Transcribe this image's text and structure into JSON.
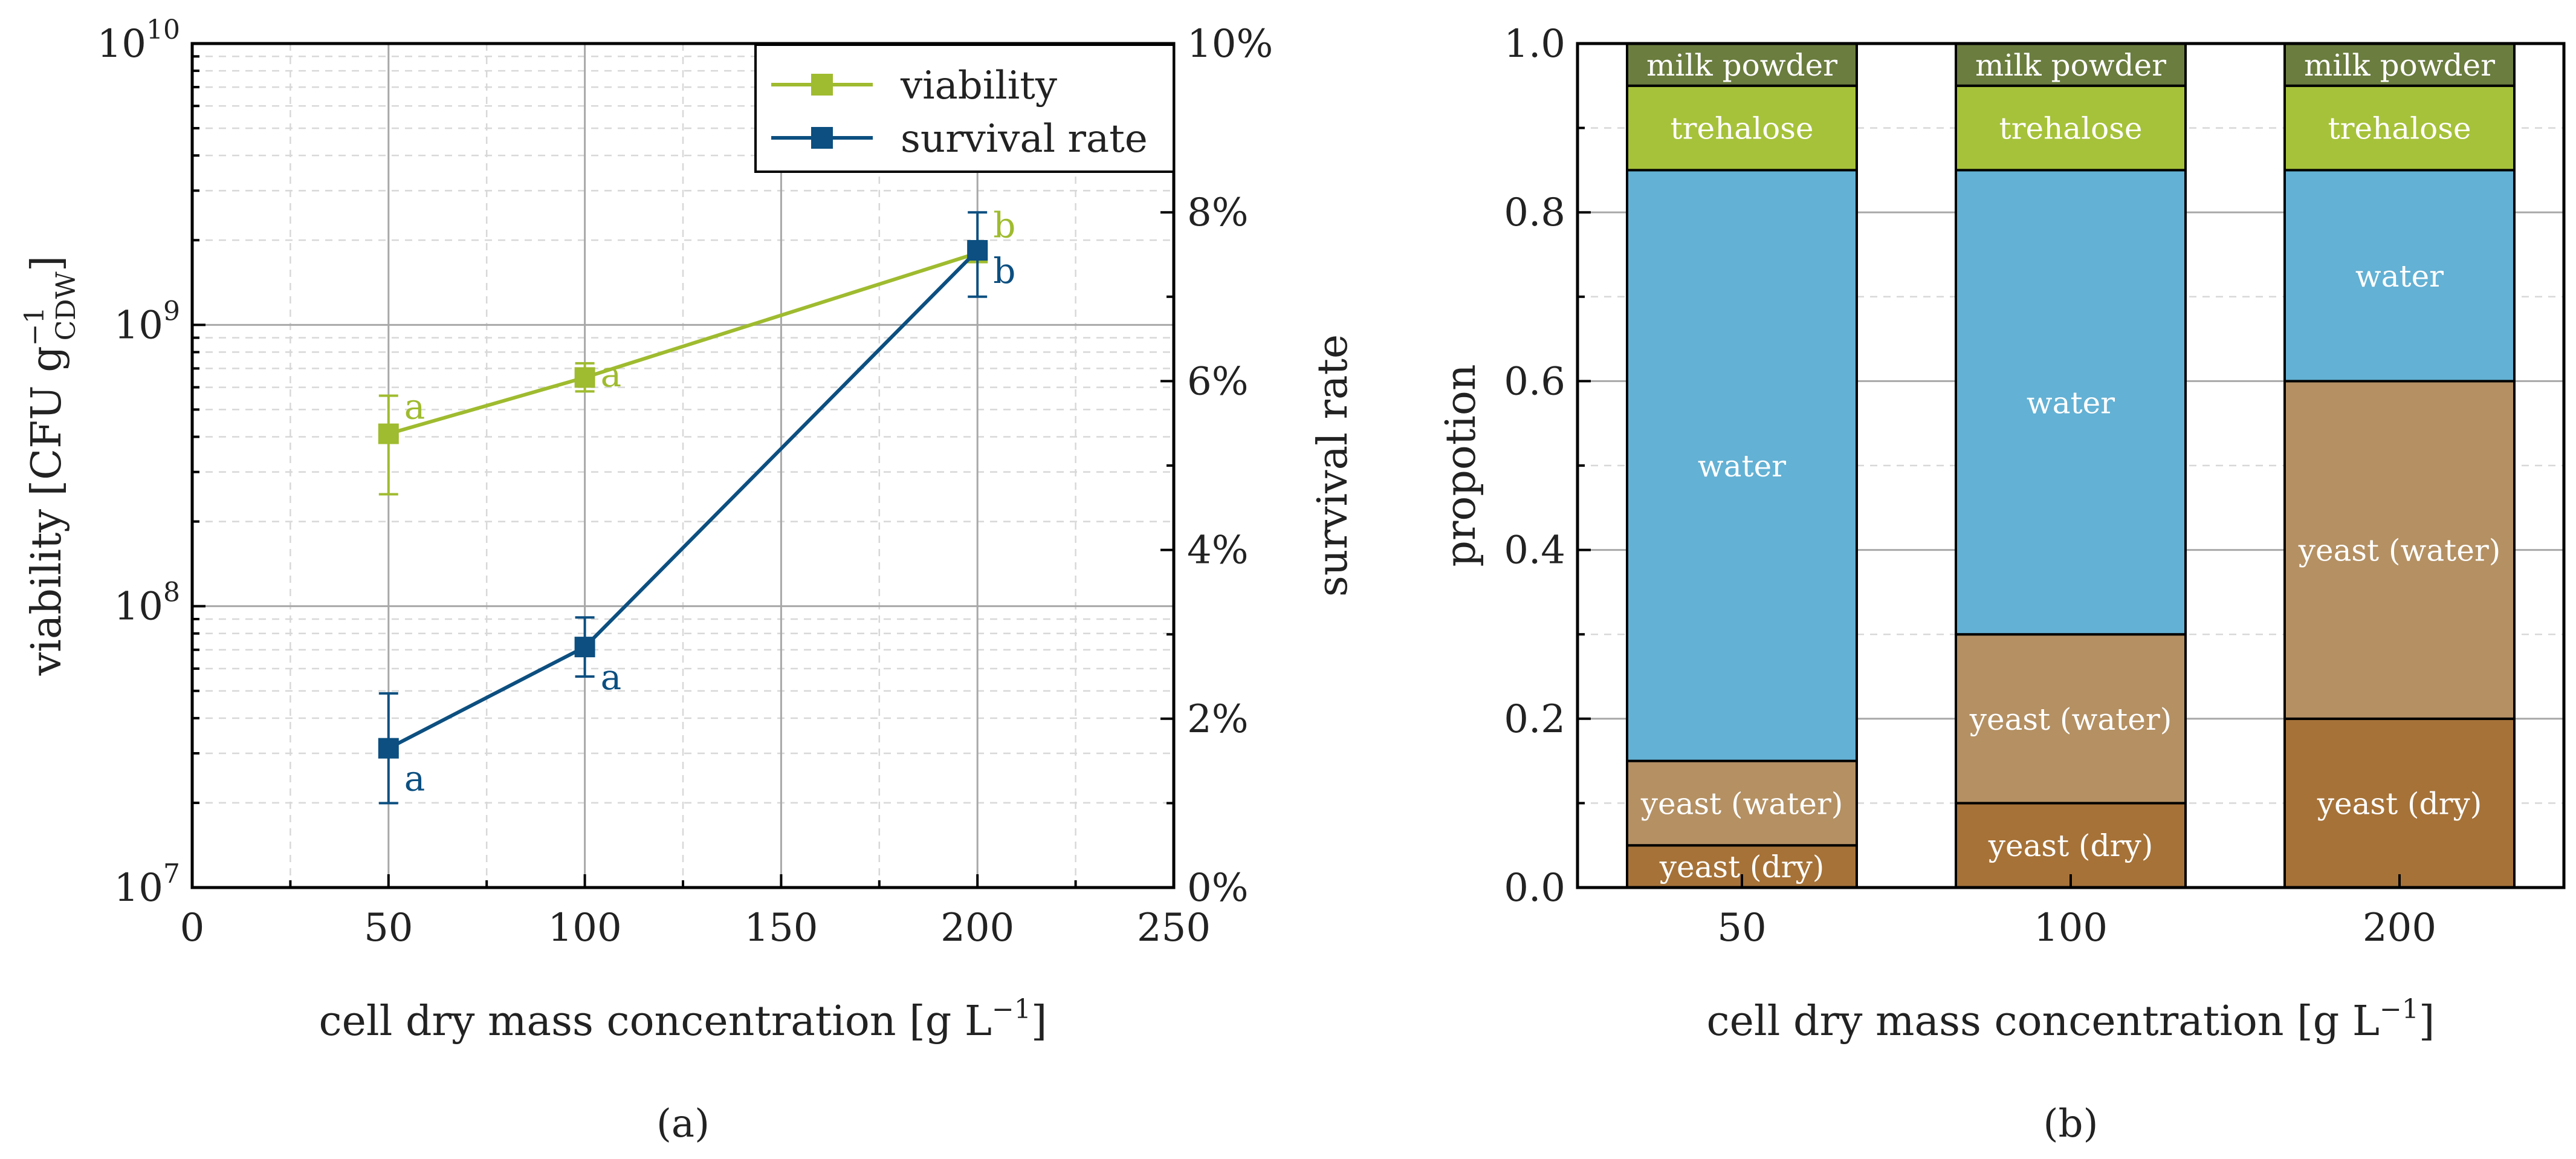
{
  "chart_data": [
    {
      "type": "line",
      "subfigure_label": "(a)",
      "xlabel": "cell dry mass concentration [g L",
      "xlabel_sup": "−1",
      "xlabel_end": "]",
      "ylabel_left": "viability [CFU g",
      "ylabel_left_sup": "−1",
      "ylabel_left_sub": "CDW",
      "ylabel_left_end": "]",
      "ylabel_right": "survival rate",
      "xlim": [
        0,
        250
      ],
      "xticks": [
        0,
        50,
        100,
        150,
        200,
        250
      ],
      "xtick_labels": [
        "0",
        "50",
        "100",
        "150",
        "200",
        "250"
      ],
      "ylim_left_log10": [
        7,
        10
      ],
      "yticks_left": [
        {
          "base": "10",
          "exp": "7",
          "value": 7
        },
        {
          "base": "10",
          "exp": "8",
          "value": 8
        },
        {
          "base": "10",
          "exp": "9",
          "value": 9
        },
        {
          "base": "10",
          "exp": "10",
          "value": 10
        }
      ],
      "ylim_right": [
        0,
        10
      ],
      "yticks_right": [
        0,
        2,
        4,
        6,
        8,
        10
      ],
      "ytick_right_labels": [
        "0%",
        "2%",
        "4%",
        "6%",
        "8%",
        "10%"
      ],
      "grid": true,
      "legend_position": "top-right",
      "legend_entries": [
        "viability",
        "survival rate"
      ],
      "series": [
        {
          "name": "viability",
          "color": "#9fbb2f",
          "axis": "left",
          "x": [
            50,
            100,
            200
          ],
          "y": [
            410000000,
            650000000,
            1800000000
          ],
          "err_low": [
            250000000,
            580000000,
            1800000000
          ],
          "err_high": [
            560000000,
            730000000,
            1800000000
          ],
          "sig_labels": [
            "a",
            "a",
            "b"
          ]
        },
        {
          "name": "survival rate",
          "color": "#0c4f80",
          "axis": "right",
          "x": [
            50,
            100,
            200
          ],
          "y": [
            1.65,
            2.85,
            7.55
          ],
          "err_low": [
            1.0,
            2.5,
            7.0
          ],
          "err_high": [
            2.3,
            3.2,
            8.0
          ],
          "sig_labels": [
            "a",
            "a",
            "b"
          ]
        }
      ]
    },
    {
      "type": "bar",
      "stacked": true,
      "subfigure_label": "(b)",
      "categories": [
        "50",
        "100",
        "200"
      ],
      "xlabel": "cell dry mass concentration [g L",
      "xlabel_sup": "−1",
      "xlabel_end": "]",
      "ylabel": "propotion",
      "ylim": [
        0,
        1
      ],
      "yticks": [
        0,
        0.2,
        0.4,
        0.6,
        0.8,
        1.0
      ],
      "ytick_labels": [
        "0.0",
        "0.2",
        "0.4",
        "0.6",
        "0.8",
        "1.0"
      ],
      "grid": true,
      "series": [
        {
          "name": "yeast (dry)",
          "color": "#a67238",
          "values": [
            0.05,
            0.1,
            0.2
          ]
        },
        {
          "name": "yeast (water)",
          "color": "#b49063",
          "values": [
            0.1,
            0.2,
            0.4
          ]
        },
        {
          "name": "water",
          "color": "#63b1d4",
          "values": [
            0.7,
            0.55,
            0.25
          ]
        },
        {
          "name": "trehalose",
          "color": "#a6c23a",
          "values": [
            0.1,
            0.1,
            0.1
          ]
        },
        {
          "name": "milk powder",
          "color": "#6b7d3f",
          "values": [
            0.05,
            0.05,
            0.05
          ]
        }
      ]
    }
  ]
}
